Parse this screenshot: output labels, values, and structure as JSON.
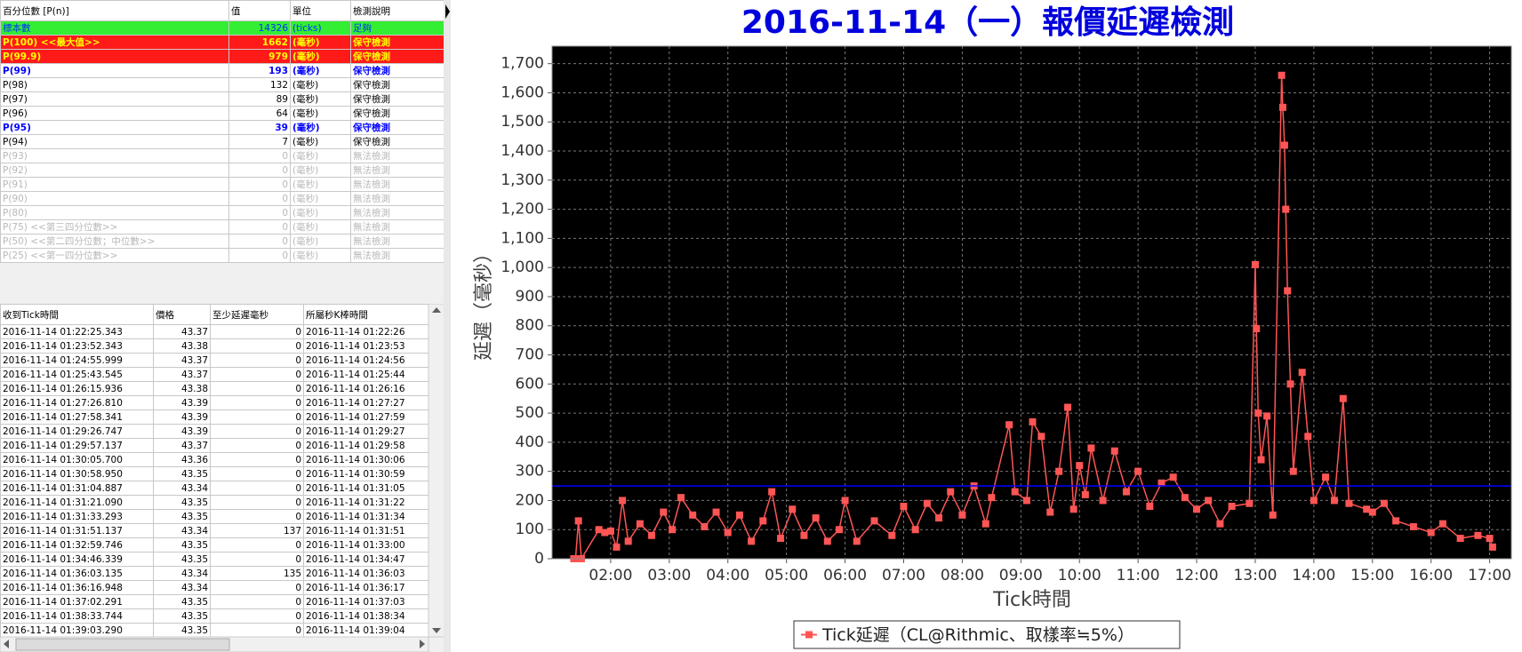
{
  "percentile_table": {
    "headers": [
      "百分位數 [P(n)]",
      "值",
      "單位",
      "檢測說明"
    ],
    "rows": [
      [
        "標本數",
        14326,
        "(ticks)",
        "足夠"
      ],
      [
        "P(100) <<最大值>>",
        1662,
        "(毫秒)",
        "保守檢測"
      ],
      [
        "P(99.9)",
        979,
        "(毫秒)",
        "保守檢測"
      ],
      [
        "P(99)",
        193,
        "(毫秒)",
        "保守檢測"
      ],
      [
        "P(98)",
        132,
        "(毫秒)",
        "保守檢測"
      ],
      [
        "P(97)",
        89,
        "(毫秒)",
        "保守檢測"
      ],
      [
        "P(96)",
        64,
        "(毫秒)",
        "保守檢測"
      ],
      [
        "P(95)",
        39,
        "(毫秒)",
        "保守檢測"
      ],
      [
        "P(94)",
        7,
        "(毫秒)",
        "保守檢測"
      ],
      [
        "P(93)",
        0,
        "(毫秒)",
        "無法檢測"
      ],
      [
        "P(92)",
        0,
        "(毫秒)",
        "無法檢測"
      ],
      [
        "P(91)",
        0,
        "(毫秒)",
        "無法檢測"
      ],
      [
        "P(90)",
        0,
        "(毫秒)",
        "無法檢測"
      ],
      [
        "P(80)",
        0,
        "(毫秒)",
        "無法檢測"
      ],
      [
        "P(75) <<第三四分位數>>",
        0,
        "(毫秒)",
        "無法檢測"
      ],
      [
        "P(50) <<第二四分位數；中位數>>",
        0,
        "(毫秒)",
        "無法檢測"
      ],
      [
        "P(25) <<第一四分位數>>",
        0,
        "(毫秒)",
        "無法檢測"
      ]
    ]
  },
  "tick_table": {
    "headers": [
      "收到Tick時間",
      "價格",
      "至少延遲毫秒",
      "所屬秒K棒時間"
    ],
    "rows": [
      [
        "2016-11-14 01:22:25.343",
        "43.37",
        "0",
        "2016-11-14 01:22:26"
      ],
      [
        "2016-11-14 01:23:52.343",
        "43.38",
        "0",
        "2016-11-14 01:23:53"
      ],
      [
        "2016-11-14 01:24:55.999",
        "43.37",
        "0",
        "2016-11-14 01:24:56"
      ],
      [
        "2016-11-14 01:25:43.545",
        "43.37",
        "0",
        "2016-11-14 01:25:44"
      ],
      [
        "2016-11-14 01:26:15.936",
        "43.38",
        "0",
        "2016-11-14 01:26:16"
      ],
      [
        "2016-11-14 01:27:26.810",
        "43.39",
        "0",
        "2016-11-14 01:27:27"
      ],
      [
        "2016-11-14 01:27:58.341",
        "43.39",
        "0",
        "2016-11-14 01:27:59"
      ],
      [
        "2016-11-14 01:29:26.747",
        "43.39",
        "0",
        "2016-11-14 01:29:27"
      ],
      [
        "2016-11-14 01:29:57.137",
        "43.37",
        "0",
        "2016-11-14 01:29:58"
      ],
      [
        "2016-11-14 01:30:05.700",
        "43.36",
        "0",
        "2016-11-14 01:30:06"
      ],
      [
        "2016-11-14 01:30:58.950",
        "43.35",
        "0",
        "2016-11-14 01:30:59"
      ],
      [
        "2016-11-14 01:31:04.887",
        "43.34",
        "0",
        "2016-11-14 01:31:05"
      ],
      [
        "2016-11-14 01:31:21.090",
        "43.35",
        "0",
        "2016-11-14 01:31:22"
      ],
      [
        "2016-11-14 01:31:33.293",
        "43.35",
        "0",
        "2016-11-14 01:31:34"
      ],
      [
        "2016-11-14 01:31:51.137",
        "43.34",
        "137",
        "2016-11-14 01:31:51"
      ],
      [
        "2016-11-14 01:32:59.746",
        "43.35",
        "0",
        "2016-11-14 01:33:00"
      ],
      [
        "2016-11-14 01:34:46.339",
        "43.35",
        "0",
        "2016-11-14 01:34:47"
      ],
      [
        "2016-11-14 01:36:03.135",
        "43.34",
        "135",
        "2016-11-14 01:36:03"
      ],
      [
        "2016-11-14 01:36:16.948",
        "43.34",
        "0",
        "2016-11-14 01:36:17"
      ],
      [
        "2016-11-14 01:37:02.291",
        "43.35",
        "0",
        "2016-11-14 01:37:03"
      ],
      [
        "2016-11-14 01:38:33.744",
        "43.35",
        "0",
        "2016-11-14 01:38:34"
      ],
      [
        "2016-11-14 01:39:03.290",
        "43.35",
        "0",
        "2016-11-14 01:39:04"
      ]
    ]
  },
  "chart_data": {
    "type": "line",
    "title": "2016-11-14（一）報價延遲檢測",
    "y_label": "延遲（毫秒）",
    "x_label": "Tick時間",
    "x": [
      1.37,
      1.4,
      1.45,
      1.5,
      1.8,
      1.9,
      2.0,
      2.1,
      2.2,
      2.3,
      2.5,
      2.7,
      2.9,
      3.05,
      3.2,
      3.4,
      3.6,
      3.8,
      4.0,
      4.2,
      4.4,
      4.6,
      4.75,
      4.9,
      5.1,
      5.3,
      5.5,
      5.7,
      5.9,
      6.0,
      6.2,
      6.5,
      6.8,
      7.0,
      7.2,
      7.4,
      7.6,
      7.8,
      8.0,
      8.2,
      8.4,
      8.5,
      8.8,
      8.9,
      9.1,
      9.2,
      9.35,
      9.5,
      9.65,
      9.8,
      9.9,
      10.0,
      10.1,
      10.2,
      10.4,
      10.6,
      10.8,
      11.0,
      11.2,
      11.4,
      11.6,
      11.8,
      12.0,
      12.2,
      12.4,
      12.6,
      12.9,
      13.0,
      13.02,
      13.05,
      13.1,
      13.2,
      13.3,
      13.45,
      13.47,
      13.5,
      13.52,
      13.55,
      13.6,
      13.65,
      13.8,
      13.9,
      14.0,
      14.2,
      14.35,
      14.5,
      14.6,
      14.9,
      15.0,
      15.2,
      15.4,
      15.7,
      16.0,
      16.2,
      16.5,
      16.8,
      17.0,
      17.05
    ],
    "series": [
      {
        "name": "Tick延遲（CL@Rithmic、取樣率≒5%）",
        "color": "#ff5555",
        "values": [
          0,
          0,
          130,
          0,
          100,
          90,
          95,
          40,
          200,
          60,
          120,
          80,
          160,
          100,
          210,
          150,
          110,
          160,
          90,
          150,
          60,
          130,
          230,
          70,
          170,
          80,
          140,
          60,
          100,
          200,
          60,
          130,
          80,
          180,
          100,
          190,
          140,
          230,
          150,
          250,
          120,
          210,
          460,
          230,
          200,
          470,
          420,
          160,
          300,
          520,
          170,
          320,
          220,
          380,
          200,
          370,
          230,
          300,
          180,
          260,
          280,
          210,
          170,
          200,
          120,
          180,
          190,
          1010,
          790,
          500,
          340,
          490,
          150,
          1660,
          1550,
          1420,
          1200,
          920,
          600,
          300,
          640,
          420,
          200,
          280,
          200,
          550,
          190,
          170,
          160,
          190,
          130,
          110,
          90,
          120,
          70,
          80,
          70,
          40
        ]
      }
    ],
    "xlim": [
      1.0,
      17.37
    ],
    "ylim": [
      0,
      1760
    ],
    "xticks": [
      {
        "value": 2,
        "label": "02:00"
      },
      {
        "value": 3,
        "label": "03:00"
      },
      {
        "value": 4,
        "label": "04:00"
      },
      {
        "value": 5,
        "label": "05:00"
      },
      {
        "value": 6,
        "label": "06:00"
      },
      {
        "value": 7,
        "label": "07:00"
      },
      {
        "value": 8,
        "label": "08:00"
      },
      {
        "value": 9,
        "label": "09:00"
      },
      {
        "value": 10,
        "label": "10:00"
      },
      {
        "value": 11,
        "label": "11:00"
      },
      {
        "value": 12,
        "label": "12:00"
      },
      {
        "value": 13,
        "label": "13:00"
      },
      {
        "value": 14,
        "label": "14:00"
      },
      {
        "value": 15,
        "label": "15:00"
      },
      {
        "value": 16,
        "label": "16:00"
      },
      {
        "value": 17,
        "label": "17:00"
      }
    ],
    "yticks": [
      0,
      100,
      200,
      300,
      400,
      500,
      600,
      700,
      800,
      900,
      {
        "value": 1000,
        "label": "1,000"
      },
      {
        "value": 1100,
        "label": "1,100"
      },
      {
        "value": 1200,
        "label": "1,200"
      },
      {
        "value": 1300,
        "label": "1,300"
      },
      {
        "value": 1400,
        "label": "1,400"
      },
      {
        "value": 1500,
        "label": "1,500"
      },
      {
        "value": 1600,
        "label": "1,600"
      },
      {
        "value": 1700,
        "label": "1,700"
      }
    ],
    "grid": true,
    "reference_line": {
      "value": 250,
      "color": "#0000ff"
    },
    "legend": "bottom"
  }
}
